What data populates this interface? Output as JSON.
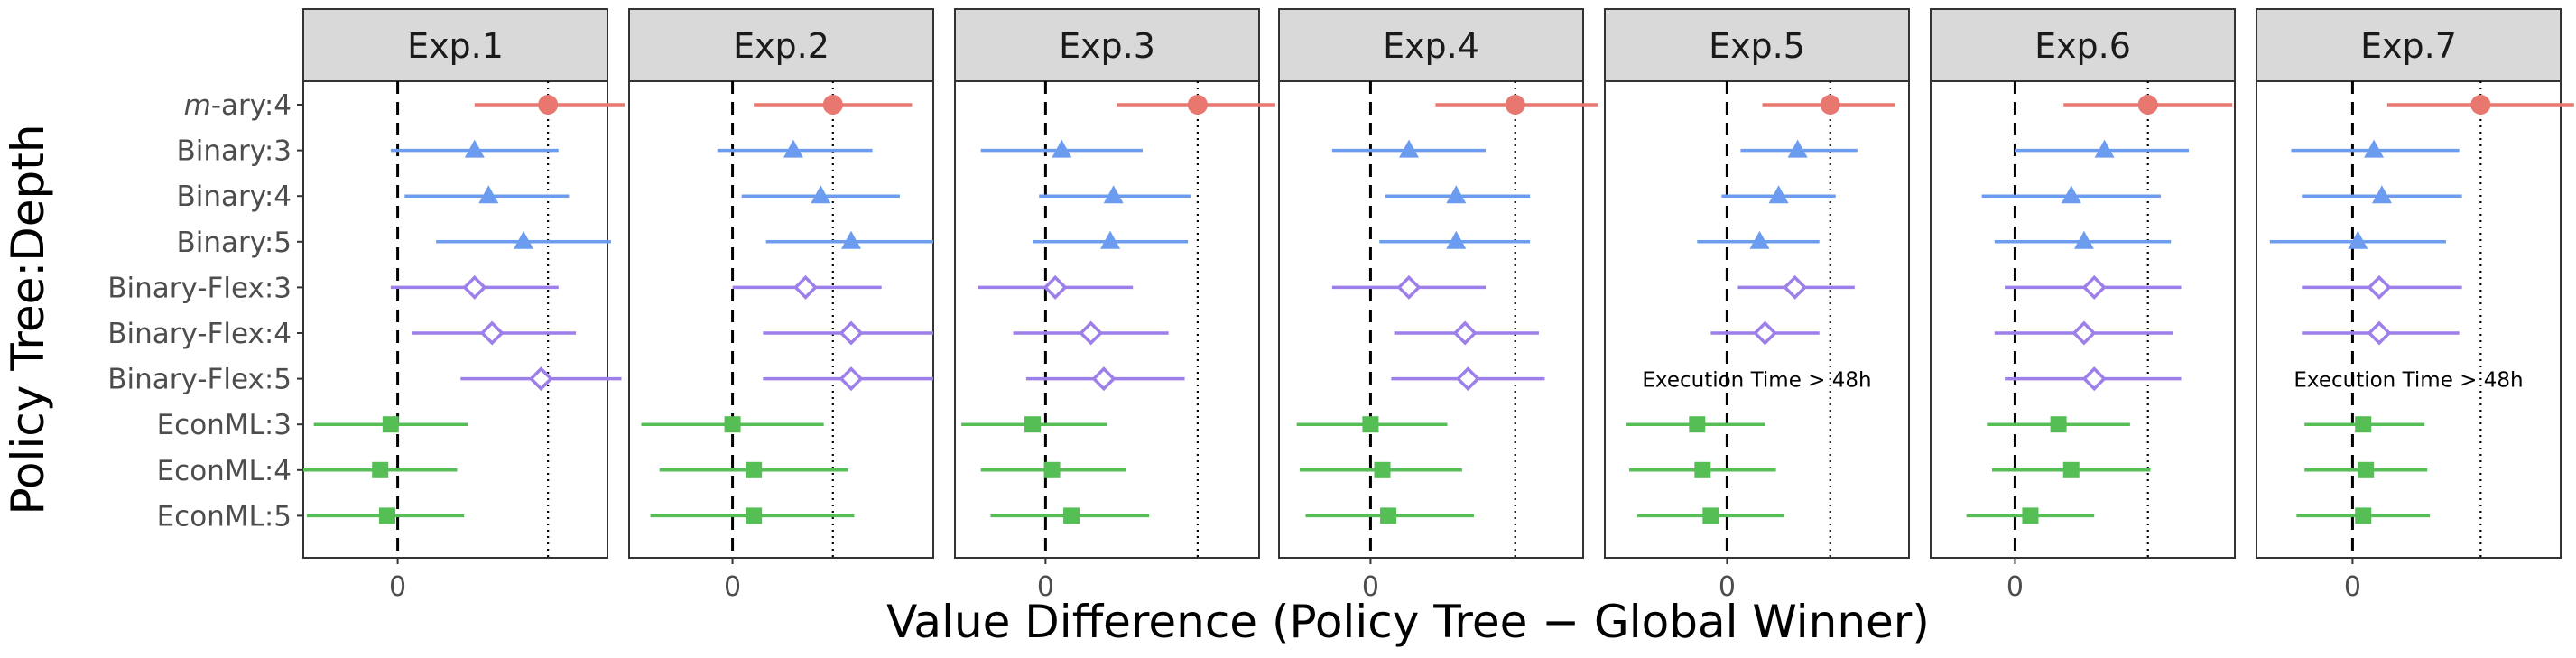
{
  "chart_data": {
    "type": "forest",
    "facets": [
      "Exp.1",
      "Exp.2",
      "Exp.3",
      "Exp.4",
      "Exp.5",
      "Exp.6",
      "Exp.7"
    ],
    "ylabel": "Policy Tree:Depth",
    "xlabel": "Value Difference (Policy Tree − Global Winner)",
    "x_tick_label": "0",
    "rows": [
      "m-ary:4",
      "Binary:3",
      "Binary:4",
      "Binary:5",
      "Binary-Flex:3",
      "Binary-Flex:4",
      "Binary-Flex:5",
      "EconML:3",
      "EconML:4",
      "EconML:5"
    ],
    "row_prefix_italic": "m",
    "row_prefix_rest": "-ary:4",
    "groups": [
      {
        "key": "mary",
        "rows": [
          0
        ],
        "color": "#E8776F",
        "shape": "circle"
      },
      {
        "key": "binary",
        "rows": [
          1,
          2,
          3
        ],
        "color": "#6C9CF0",
        "shape": "triangle"
      },
      {
        "key": "flex",
        "rows": [
          4,
          5,
          6
        ],
        "color": "#9D7FEA",
        "shape": "diamond-open"
      },
      {
        "key": "econml",
        "rows": [
          7,
          8,
          9
        ],
        "color": "#55BE55",
        "shape": "square"
      }
    ],
    "note_text": "Execution Time > 48h",
    "panels": [
      {
        "name": "Exp.1",
        "xlim": [
          -0.27,
          0.6
        ],
        "ref_dotted": 0.43,
        "points": [
          [
            0.43,
            0.22,
            0.65
          ],
          [
            0.22,
            -0.02,
            0.46
          ],
          [
            0.26,
            0.02,
            0.49
          ],
          [
            0.36,
            0.11,
            0.61
          ],
          [
            0.22,
            -0.02,
            0.46
          ],
          [
            0.27,
            0.04,
            0.51
          ],
          [
            0.41,
            0.18,
            0.64
          ],
          [
            -0.02,
            -0.24,
            0.2
          ],
          [
            -0.05,
            -0.27,
            0.17
          ],
          [
            -0.03,
            -0.26,
            0.19
          ]
        ],
        "note": false
      },
      {
        "name": "Exp.2",
        "xlim": [
          -0.34,
          0.66
        ],
        "ref_dotted": 0.33,
        "points": [
          [
            0.33,
            0.07,
            0.59
          ],
          [
            0.2,
            -0.05,
            0.46
          ],
          [
            0.29,
            0.03,
            0.55
          ],
          [
            0.39,
            0.11,
            0.66
          ],
          [
            0.24,
            0.0,
            0.49
          ],
          [
            0.39,
            0.1,
            0.66
          ],
          [
            0.39,
            0.1,
            0.66
          ],
          [
            0.0,
            -0.3,
            0.3
          ],
          [
            0.07,
            -0.24,
            0.38
          ],
          [
            0.07,
            -0.27,
            0.4
          ]
        ],
        "note": false
      },
      {
        "name": "Exp.3",
        "xlim": [
          -0.28,
          0.66
        ],
        "ref_dotted": 0.47,
        "points": [
          [
            0.47,
            0.22,
            0.71
          ],
          [
            0.05,
            -0.2,
            0.3
          ],
          [
            0.21,
            -0.02,
            0.45
          ],
          [
            0.2,
            -0.04,
            0.44
          ],
          [
            0.03,
            -0.21,
            0.27
          ],
          [
            0.14,
            -0.1,
            0.38
          ],
          [
            0.18,
            -0.06,
            0.43
          ],
          [
            -0.04,
            -0.26,
            0.19
          ],
          [
            0.02,
            -0.2,
            0.25
          ],
          [
            0.08,
            -0.17,
            0.32
          ]
        ],
        "note": false
      },
      {
        "name": "Exp.4",
        "xlim": [
          -0.31,
          0.72
        ],
        "ref_dotted": 0.49,
        "points": [
          [
            0.49,
            0.22,
            0.77
          ],
          [
            0.13,
            -0.13,
            0.39
          ],
          [
            0.29,
            0.05,
            0.54
          ],
          [
            0.29,
            0.03,
            0.54
          ],
          [
            0.13,
            -0.13,
            0.39
          ],
          [
            0.32,
            0.08,
            0.57
          ],
          [
            0.33,
            0.07,
            0.59
          ],
          [
            0.0,
            -0.25,
            0.26
          ],
          [
            0.04,
            -0.24,
            0.31
          ],
          [
            0.06,
            -0.22,
            0.35
          ]
        ],
        "note": false
      },
      {
        "name": "Exp.5",
        "xlim": [
          -0.45,
          0.67
        ],
        "ref_dotted": 0.38,
        "points": [
          [
            0.38,
            0.13,
            0.62
          ],
          [
            0.26,
            0.05,
            0.48
          ],
          [
            0.19,
            -0.02,
            0.4
          ],
          [
            0.12,
            -0.11,
            0.34
          ],
          [
            0.25,
            0.04,
            0.47
          ],
          [
            0.14,
            -0.06,
            0.34
          ],
          null,
          [
            -0.11,
            -0.37,
            0.14
          ],
          [
            -0.09,
            -0.36,
            0.18
          ],
          [
            -0.06,
            -0.33,
            0.21
          ]
        ],
        "note": true
      },
      {
        "name": "Exp.6",
        "xlim": [
          -0.33,
          0.86
        ],
        "ref_dotted": 0.52,
        "points": [
          [
            0.52,
            0.19,
            0.85
          ],
          [
            0.35,
            0.0,
            0.68
          ],
          [
            0.22,
            -0.13,
            0.57
          ],
          [
            0.27,
            -0.08,
            0.61
          ],
          [
            0.31,
            -0.04,
            0.65
          ],
          [
            0.27,
            -0.08,
            0.62
          ],
          [
            0.31,
            -0.04,
            0.65
          ],
          [
            0.17,
            -0.11,
            0.45
          ],
          [
            0.22,
            -0.09,
            0.53
          ],
          [
            0.06,
            -0.19,
            0.31
          ]
        ],
        "note": false
      },
      {
        "name": "Exp.7",
        "xlim": [
          -0.36,
          0.78
        ],
        "ref_dotted": 0.48,
        "points": [
          [
            0.48,
            0.13,
            0.83
          ],
          [
            0.08,
            -0.23,
            0.4
          ],
          [
            0.11,
            -0.19,
            0.41
          ],
          [
            0.02,
            -0.31,
            0.35
          ],
          [
            0.1,
            -0.19,
            0.41
          ],
          [
            0.1,
            -0.19,
            0.4
          ],
          null,
          [
            0.04,
            -0.18,
            0.27
          ],
          [
            0.05,
            -0.18,
            0.28
          ],
          [
            0.04,
            -0.21,
            0.29
          ]
        ],
        "note": true
      }
    ]
  }
}
